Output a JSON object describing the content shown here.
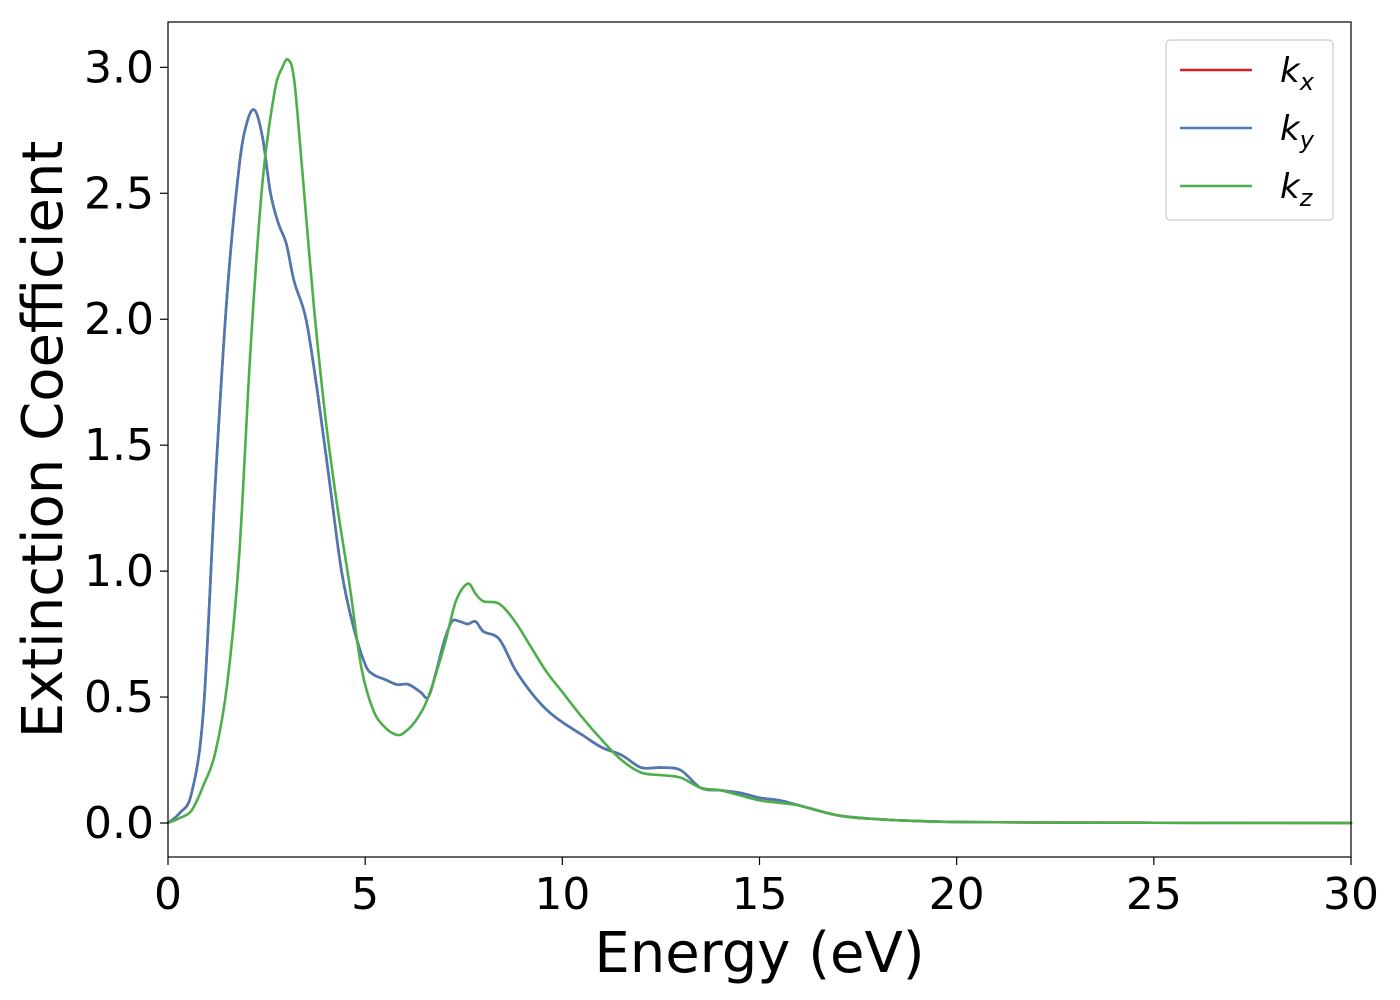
{
  "chart_data": {
    "type": "line",
    "xlabel": "Energy (eV)",
    "ylabel": "Extinction Coefficient",
    "xlim": [
      0,
      30
    ],
    "ylim": [
      -0.135,
      3.18
    ],
    "xticks": [
      0,
      5,
      10,
      15,
      20,
      25,
      30
    ],
    "yticks": [
      0.0,
      0.5,
      1.0,
      1.5,
      2.0,
      2.5,
      3.0
    ],
    "xtick_labels": [
      "0",
      "5",
      "10",
      "15",
      "20",
      "25",
      "30"
    ],
    "ytick_labels": [
      "0.0",
      "0.5",
      "1.0",
      "1.5",
      "2.0",
      "2.5",
      "3.0"
    ],
    "grid": false,
    "legend_position": "top-right",
    "series": [
      {
        "name": "k_x",
        "label_base": "k",
        "label_sub": "x",
        "color": "#e41a1c",
        "x": [
          0,
          0.3,
          0.6,
          0.9,
          1.2,
          1.5,
          1.8,
          2.0,
          2.2,
          2.4,
          2.6,
          2.8,
          3.0,
          3.2,
          3.5,
          3.8,
          4.1,
          4.4,
          4.7,
          5.0,
          5.2,
          5.5,
          5.8,
          6.1,
          6.4,
          6.6,
          6.8,
          7.0,
          7.2,
          7.4,
          7.6,
          7.8,
          8.0,
          8.4,
          8.8,
          9.2,
          9.6,
          10.0,
          10.5,
          11.0,
          11.5,
          12.0,
          12.5,
          13.0,
          13.5,
          14.0,
          14.5,
          15.0,
          15.5,
          16.0,
          17.0,
          18.0,
          19.0,
          20.0,
          22.0,
          25.0,
          28.0,
          30.0
        ],
        "y": [
          0.0,
          0.04,
          0.12,
          0.45,
          1.35,
          2.1,
          2.6,
          2.78,
          2.83,
          2.72,
          2.5,
          2.38,
          2.3,
          2.15,
          2.0,
          1.7,
          1.35,
          1.0,
          0.78,
          0.63,
          0.59,
          0.57,
          0.55,
          0.55,
          0.52,
          0.5,
          0.6,
          0.72,
          0.8,
          0.8,
          0.79,
          0.8,
          0.76,
          0.73,
          0.61,
          0.52,
          0.45,
          0.4,
          0.35,
          0.3,
          0.27,
          0.22,
          0.22,
          0.21,
          0.14,
          0.13,
          0.12,
          0.1,
          0.09,
          0.07,
          0.03,
          0.015,
          0.008,
          0.004,
          0.002,
          0.001,
          0.0005,
          0.0
        ]
      },
      {
        "name": "k_y",
        "label_base": "k",
        "label_sub": "y",
        "color": "#4a7ab3",
        "x": [
          0,
          0.3,
          0.6,
          0.9,
          1.2,
          1.5,
          1.8,
          2.0,
          2.2,
          2.4,
          2.6,
          2.8,
          3.0,
          3.2,
          3.5,
          3.8,
          4.1,
          4.4,
          4.7,
          5.0,
          5.2,
          5.5,
          5.8,
          6.1,
          6.4,
          6.6,
          6.8,
          7.0,
          7.2,
          7.4,
          7.6,
          7.8,
          8.0,
          8.4,
          8.8,
          9.2,
          9.6,
          10.0,
          10.5,
          11.0,
          11.5,
          12.0,
          12.5,
          13.0,
          13.5,
          14.0,
          14.5,
          15.0,
          15.5,
          16.0,
          17.0,
          18.0,
          19.0,
          20.0,
          22.0,
          25.0,
          28.0,
          30.0
        ],
        "y": [
          0.0,
          0.04,
          0.12,
          0.45,
          1.35,
          2.1,
          2.6,
          2.78,
          2.83,
          2.72,
          2.5,
          2.38,
          2.3,
          2.15,
          2.0,
          1.7,
          1.35,
          1.0,
          0.78,
          0.63,
          0.59,
          0.57,
          0.55,
          0.55,
          0.52,
          0.5,
          0.6,
          0.72,
          0.8,
          0.8,
          0.79,
          0.8,
          0.76,
          0.73,
          0.61,
          0.52,
          0.45,
          0.4,
          0.35,
          0.3,
          0.27,
          0.22,
          0.22,
          0.21,
          0.14,
          0.13,
          0.12,
          0.1,
          0.09,
          0.07,
          0.03,
          0.015,
          0.008,
          0.004,
          0.002,
          0.001,
          0.0005,
          0.0
        ]
      },
      {
        "name": "k_z",
        "label_base": "k",
        "label_sub": "z",
        "color": "#4daf4a",
        "x": [
          0,
          0.3,
          0.6,
          0.9,
          1.2,
          1.5,
          1.8,
          2.1,
          2.4,
          2.7,
          2.9,
          3.05,
          3.2,
          3.4,
          3.7,
          4.0,
          4.3,
          4.6,
          4.9,
          5.2,
          5.5,
          5.8,
          6.0,
          6.3,
          6.6,
          7.0,
          7.3,
          7.6,
          7.8,
          8.0,
          8.4,
          8.8,
          9.2,
          9.6,
          10.0,
          10.5,
          11.0,
          11.5,
          12.0,
          12.5,
          13.0,
          13.5,
          14.0,
          14.5,
          15.0,
          15.5,
          16.0,
          17.0,
          18.0,
          19.0,
          20.0,
          22.0,
          25.0,
          28.0,
          30.0
        ],
        "y": [
          0.0,
          0.02,
          0.05,
          0.15,
          0.28,
          0.55,
          1.05,
          1.9,
          2.55,
          2.9,
          3.0,
          3.03,
          2.95,
          2.6,
          2.05,
          1.6,
          1.25,
          0.95,
          0.62,
          0.45,
          0.38,
          0.35,
          0.36,
          0.41,
          0.5,
          0.7,
          0.88,
          0.95,
          0.91,
          0.88,
          0.87,
          0.8,
          0.7,
          0.6,
          0.52,
          0.42,
          0.33,
          0.25,
          0.2,
          0.19,
          0.18,
          0.14,
          0.13,
          0.11,
          0.09,
          0.08,
          0.07,
          0.03,
          0.015,
          0.008,
          0.004,
          0.002,
          0.001,
          0.0005,
          0.0
        ]
      }
    ]
  }
}
